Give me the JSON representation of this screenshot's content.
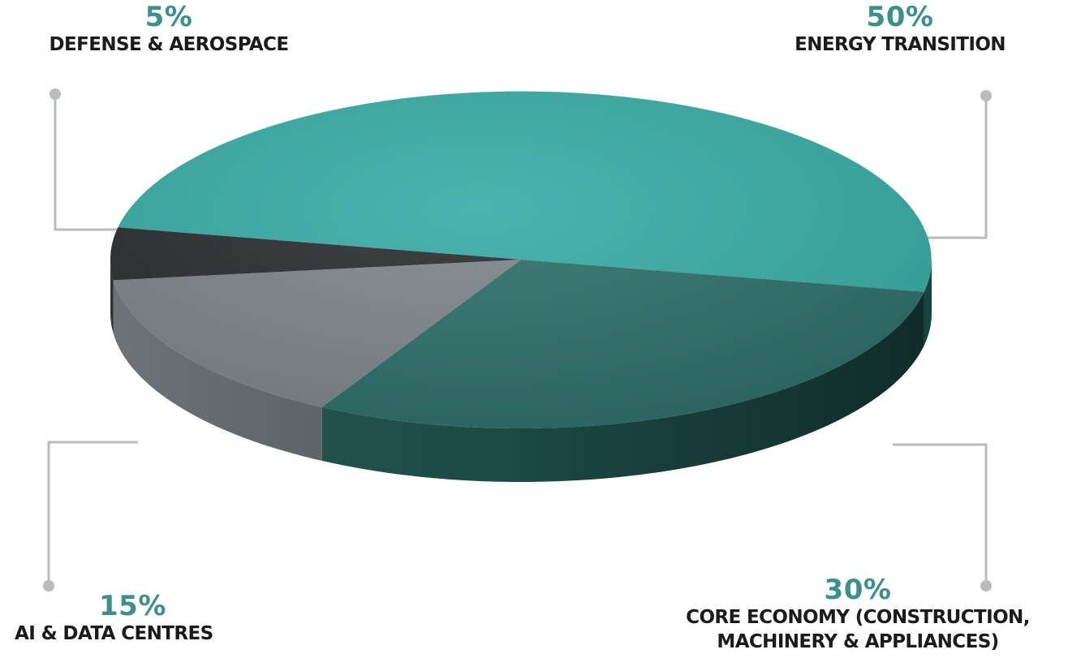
{
  "colors": {
    "energy_top": "#37ABA4",
    "core_top": "#2D6E69",
    "ai_top": "#7C858A",
    "defense_top": "#2A2C30",
    "leader_line": "#B9BBBD",
    "percent_text": "#3C9089",
    "label_text": "#1B1B1B"
  },
  "chart_data": {
    "type": "pie",
    "style": "3d-disc",
    "slices": [
      {
        "label": "ENERGY TRANSITION",
        "value": 50,
        "display": "50%"
      },
      {
        "label": "CORE ECONOMY (CONSTRUCTION, MACHINERY & APPLIANCES)",
        "label_lines": [
          "CORE ECONOMY (CONSTRUCTION,",
          "MACHINERY & APPLIANCES)"
        ],
        "value": 30,
        "display": "30%"
      },
      {
        "label": "AI & DATA CENTRES",
        "value": 15,
        "display": "15%"
      },
      {
        "label": "DEFENSE & AEROSPACE",
        "value": 5,
        "display": "5%"
      }
    ]
  }
}
